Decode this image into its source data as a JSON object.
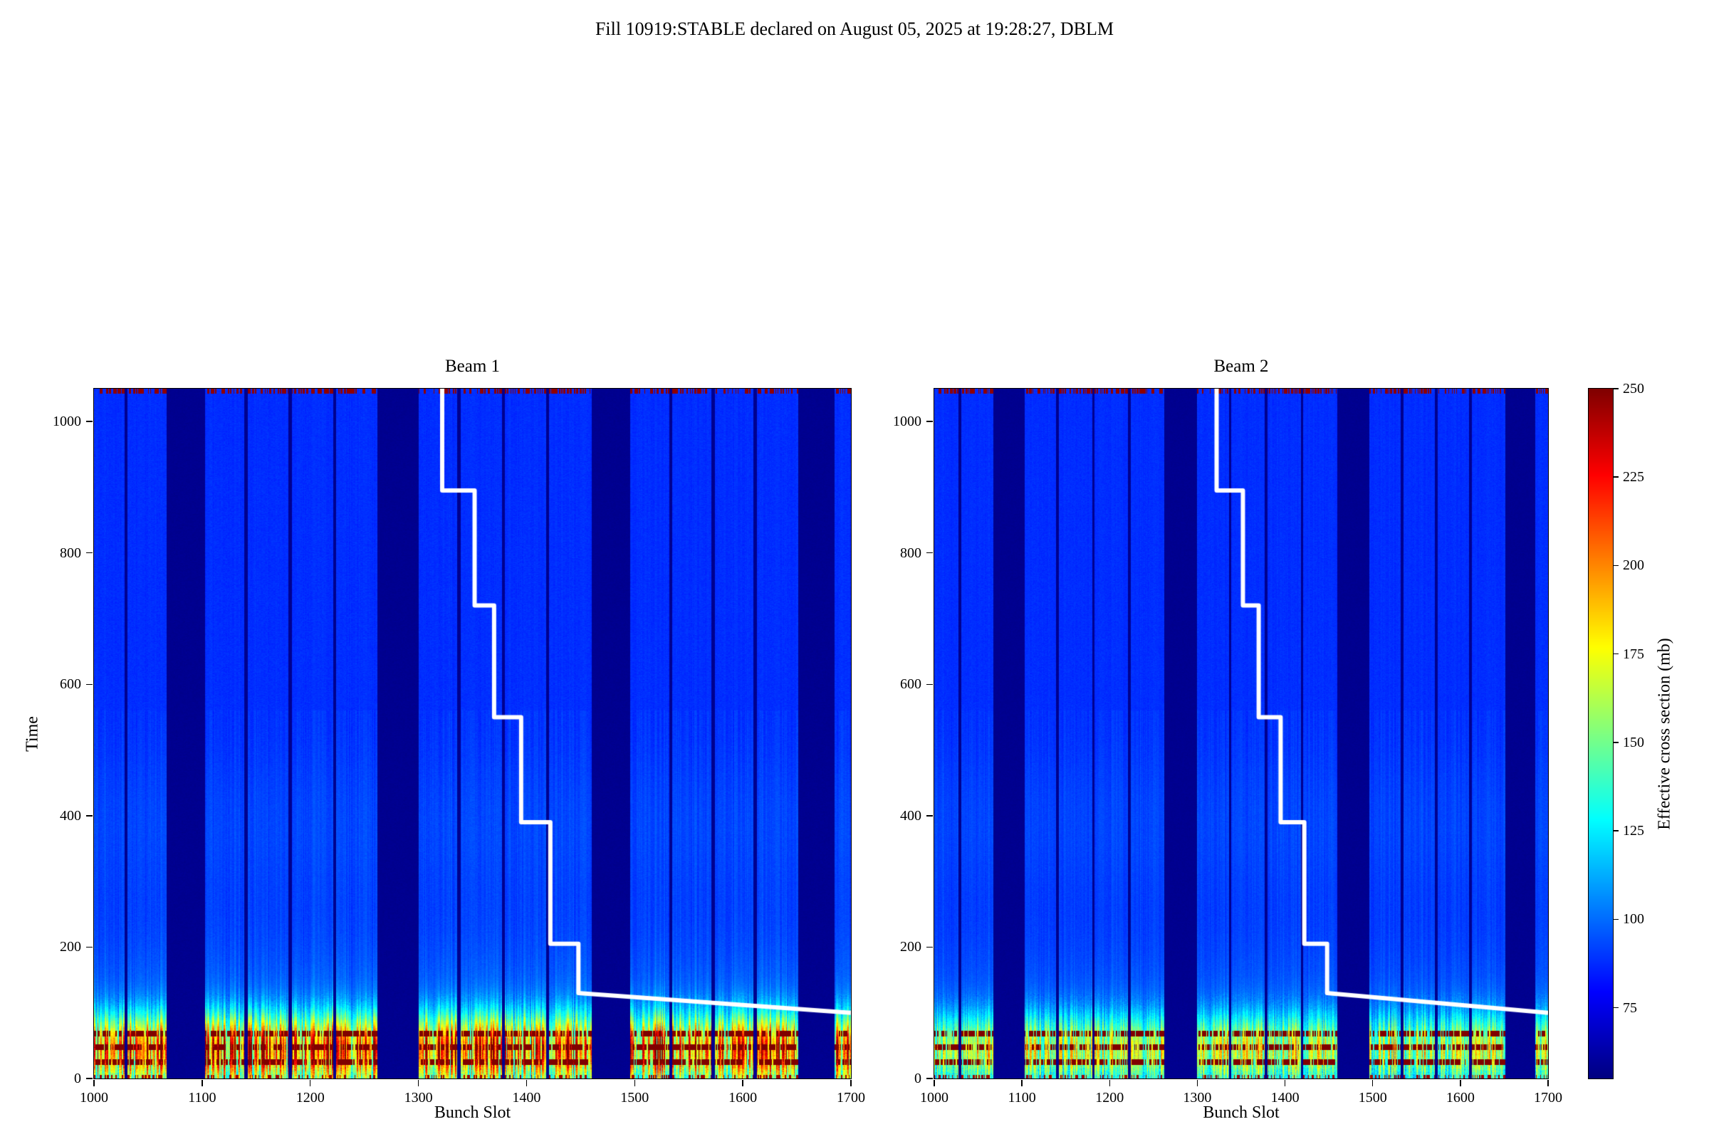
{
  "figure": {
    "suptitle": "Fill 10919:STABLE declared on August 05, 2025 at 19:28:27, DBLM"
  },
  "chart_data": {
    "type": "heatmap",
    "colormap": "jet",
    "panels": [
      {
        "title": "Beam 1",
        "xlabel": "Bunch Slot",
        "ylabel": "Time",
        "hot_amp": 95
      },
      {
        "title": "Beam 2",
        "xlabel": "Bunch Slot",
        "ylabel": "",
        "hot_amp": 62
      }
    ],
    "x_range": [
      1000,
      1700
    ],
    "y_range": [
      0,
      1050
    ],
    "x_ticks": [
      1000,
      1100,
      1200,
      1300,
      1400,
      1500,
      1600,
      1700
    ],
    "y_ticks": [
      0,
      200,
      400,
      600,
      800,
      1000
    ],
    "vmin": 55,
    "vmax": 250,
    "base_value": 88,
    "gap_value": 57,
    "trains": [
      [
        1000,
        1028
      ],
      [
        1031,
        1067
      ],
      [
        1103,
        1139
      ],
      [
        1142,
        1180
      ],
      [
        1183,
        1221
      ],
      [
        1224,
        1262
      ],
      [
        1300,
        1336
      ],
      [
        1339,
        1377
      ],
      [
        1380,
        1418
      ],
      [
        1421,
        1460
      ],
      [
        1496,
        1532
      ],
      [
        1535,
        1571
      ],
      [
        1574,
        1610
      ],
      [
        1613,
        1651
      ],
      [
        1685,
        1700
      ]
    ],
    "hot_rows": [
      25,
      48,
      68
    ],
    "hot_row_value": 250,
    "white_line": {
      "color": "#ffffff",
      "points": [
        [
          1322,
          1050
        ],
        [
          1322,
          895
        ],
        [
          1352,
          895
        ],
        [
          1352,
          720
        ],
        [
          1370,
          720
        ],
        [
          1370,
          550
        ],
        [
          1395,
          550
        ],
        [
          1395,
          390
        ],
        [
          1422,
          390
        ],
        [
          1422,
          205
        ],
        [
          1448,
          205
        ],
        [
          1448,
          130
        ],
        [
          1700,
          100
        ]
      ]
    },
    "colorbar": {
      "label": "Effective cross section (mb)",
      "ticks": [
        75,
        100,
        125,
        150,
        175,
        200,
        225,
        250
      ]
    }
  }
}
